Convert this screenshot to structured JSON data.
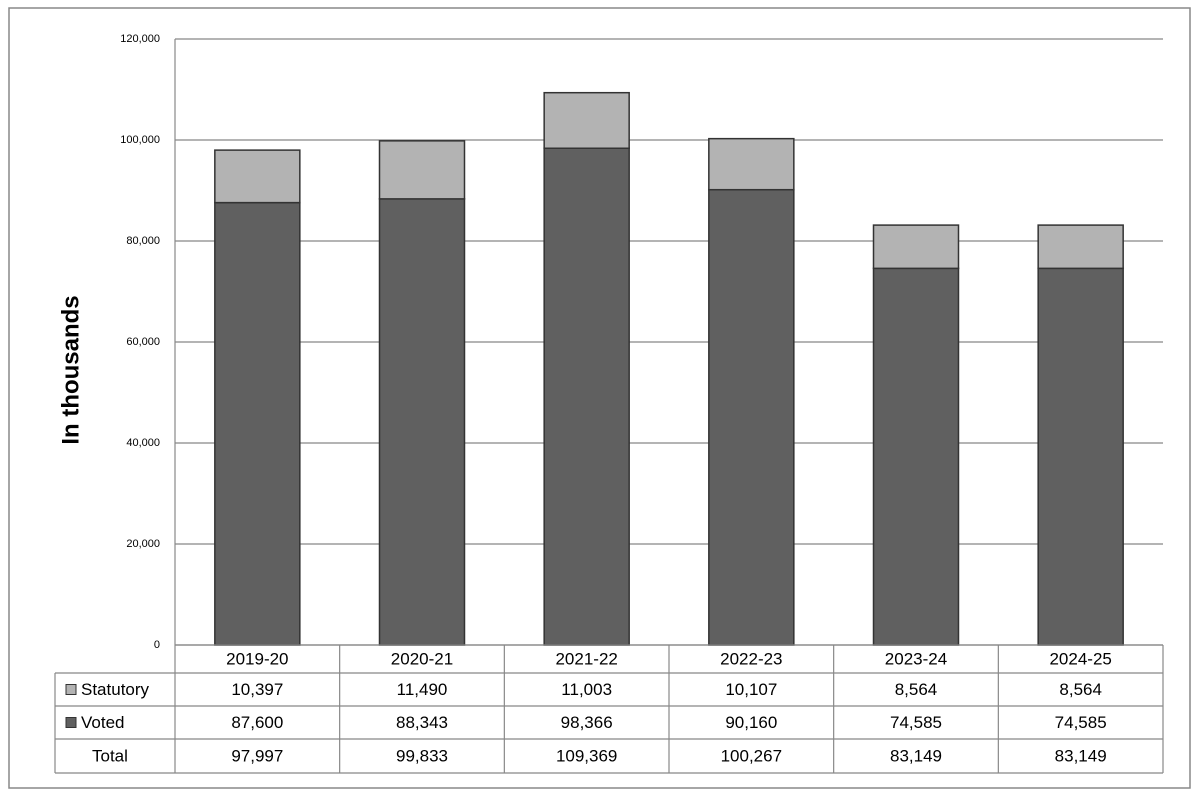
{
  "chart_data": {
    "type": "stacked_bar",
    "y_label": "In thousands",
    "categories": [
      "2019-20",
      "2020-21",
      "2021-22",
      "2022-23",
      "2023-24",
      "2024-25"
    ],
    "series": [
      {
        "name": "Statutory",
        "color": "#b3b3b3",
        "values": [
          10397,
          11490,
          11003,
          10107,
          8564,
          8564
        ],
        "value_labels": [
          "10,397",
          "11,490",
          "11,003",
          "10,107",
          "8,564",
          "8,564"
        ]
      },
      {
        "name": "Voted",
        "color": "#606060",
        "values": [
          87600,
          88343,
          98366,
          90160,
          74585,
          74585
        ],
        "value_labels": [
          "87,600",
          "88,343",
          "98,366",
          "90,160",
          "74,585",
          "74,585"
        ]
      }
    ],
    "total": {
      "name": "Total",
      "values": [
        97997,
        99833,
        109369,
        100267,
        83149,
        83149
      ],
      "value_labels": [
        "97,997",
        "99,833",
        "109,369",
        "100,267",
        "83,149",
        "83,149"
      ]
    },
    "ylim": [
      0,
      120000
    ],
    "yticks": [
      0,
      {
        "value": 20000,
        "label": "20,000"
      },
      {
        "value": 40000,
        "label": "40,000"
      },
      {
        "value": 60000,
        "label": "60,000"
      },
      {
        "value": 80000,
        "label": "80,000"
      },
      {
        "value": 100000,
        "label": "100,000"
      },
      {
        "value": 120000,
        "label": "120,000"
      }
    ],
    "grid": true
  }
}
